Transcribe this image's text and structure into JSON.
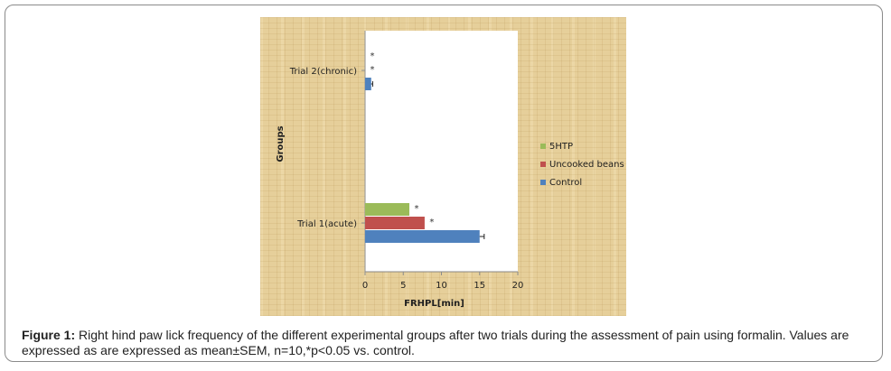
{
  "chart_data": {
    "type": "bar",
    "orientation": "horizontal",
    "categories": [
      "Trial 1(acute)",
      "Trial 2(chronic)"
    ],
    "series": [
      {
        "name": "Control",
        "color": "#4f81bd",
        "values": [
          15,
          0.8
        ],
        "errors": [
          0.6,
          0.2
        ]
      },
      {
        "name": "Uncooked beans",
        "color": "#c0504d",
        "values": [
          7.8,
          0
        ],
        "significant": [
          true,
          true
        ]
      },
      {
        "name": "5HTP",
        "color": "#9bbb59",
        "values": [
          5.8,
          0
        ],
        "significant": [
          true,
          true
        ]
      }
    ],
    "legend_order": [
      "5HTP",
      "Uncooked beans",
      "Control"
    ],
    "significance_marker": "*",
    "xlabel": "FRHPL[min]",
    "ylabel": "Groups",
    "xlim": [
      0,
      20
    ],
    "xticks": [
      0,
      5,
      10,
      15,
      20
    ],
    "legend_position": "right"
  },
  "caption": {
    "label": "Figure 1:",
    "text": " Right hind paw lick frequency of the different experimental groups after two trials during the assessment of pain using formalin. Values are expressed as are expressed as mean±SEM, n=10,*p<0.05 vs. control."
  }
}
